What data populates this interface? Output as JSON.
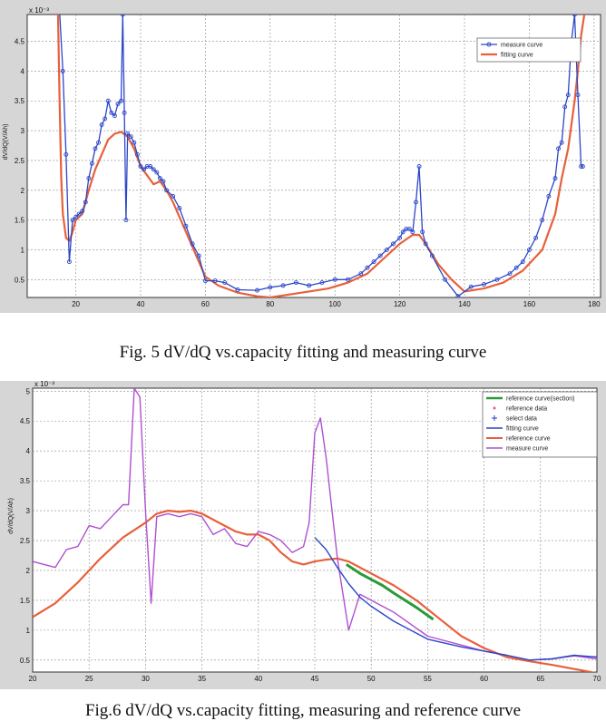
{
  "captions": {
    "fig5": "Fig. 5 dV/dQ vs.capacity fitting and measuring curve",
    "fig6": "Fig.6   dV/dQ vs.capacity fitting, measuring and reference curve"
  },
  "chart_data": [
    {
      "type": "line",
      "title": "",
      "xlabel": "",
      "ylabel": "dV/dQ(V/Ah)",
      "exponent_label": "x 10⁻³",
      "xlim": [
        5,
        182
      ],
      "ylim": [
        0.2,
        4.95
      ],
      "xticks": [
        20,
        40,
        60,
        80,
        100,
        120,
        140,
        160,
        180
      ],
      "yticks": [
        0.5,
        1,
        1.5,
        2,
        2.5,
        3,
        3.5,
        4,
        4.5
      ],
      "grid": true,
      "legend_position": "top-right",
      "colors": {
        "measure": "#2b46c8",
        "fitting": "#e8603a",
        "grid": "#8a8a8a"
      },
      "series": [
        {
          "name": "measure curve",
          "marker": "circle",
          "x": [
            15,
            16,
            17,
            18,
            19,
            20,
            21,
            22,
            23,
            24,
            25,
            26,
            27,
            28,
            29,
            30,
            31,
            32,
            33,
            34,
            34.5,
            35,
            35.5,
            36,
            37,
            38,
            39,
            40,
            41,
            42,
            43,
            44,
            45,
            46,
            47,
            48,
            50,
            52,
            54,
            56,
            58,
            60,
            63,
            66,
            70,
            76,
            80,
            84,
            88,
            92,
            96,
            100,
            104,
            108,
            110,
            112,
            114,
            116,
            118,
            120,
            121,
            122,
            123,
            124,
            125,
            126,
            127,
            128,
            130,
            134,
            138,
            142,
            146,
            150,
            154,
            156,
            158,
            160,
            162,
            164,
            166,
            168,
            169,
            170,
            171,
            172,
            173,
            174,
            175,
            176,
            176.5
          ],
          "y": [
            5.0,
            4.0,
            2.6,
            0.8,
            1.5,
            1.55,
            1.6,
            1.65,
            1.8,
            2.2,
            2.45,
            2.7,
            2.8,
            3.1,
            3.2,
            3.5,
            3.3,
            3.25,
            3.45,
            3.5,
            4.95,
            3.3,
            1.5,
            2.95,
            2.9,
            2.8,
            2.6,
            2.4,
            2.35,
            2.4,
            2.4,
            2.35,
            2.3,
            2.2,
            2.15,
            2.0,
            1.9,
            1.7,
            1.4,
            1.1,
            0.9,
            0.48,
            0.48,
            0.45,
            0.33,
            0.32,
            0.37,
            0.4,
            0.45,
            0.4,
            0.45,
            0.5,
            0.5,
            0.6,
            0.7,
            0.8,
            0.9,
            1.0,
            1.1,
            1.2,
            1.3,
            1.35,
            1.35,
            1.3,
            1.8,
            2.4,
            1.3,
            1.1,
            0.9,
            0.5,
            0.22,
            0.38,
            0.42,
            0.5,
            0.6,
            0.7,
            0.8,
            1.0,
            1.2,
            1.5,
            1.9,
            2.2,
            2.7,
            2.8,
            3.4,
            3.6,
            4.5,
            4.95,
            3.6,
            2.4,
            2.4
          ]
        },
        {
          "name": "fitting curve",
          "x": [
            14.5,
            15,
            15.5,
            16,
            17,
            18,
            19,
            20,
            22,
            24,
            26,
            28,
            30,
            32,
            34,
            36,
            38,
            40,
            42,
            44,
            46,
            48,
            50,
            54,
            58,
            60,
            64,
            70,
            76,
            80,
            86,
            92,
            98,
            104,
            110,
            116,
            120,
            124,
            126,
            128,
            132,
            136,
            140,
            146,
            152,
            158,
            164,
            168,
            170,
            172,
            174,
            175,
            176,
            177
          ],
          "y": [
            5.0,
            3.5,
            2.2,
            1.6,
            1.2,
            1.15,
            1.3,
            1.5,
            1.6,
            2.0,
            2.35,
            2.6,
            2.85,
            2.95,
            2.98,
            2.9,
            2.7,
            2.4,
            2.25,
            2.1,
            2.15,
            2.0,
            1.8,
            1.3,
            0.8,
            0.55,
            0.4,
            0.28,
            0.22,
            0.2,
            0.25,
            0.3,
            0.35,
            0.45,
            0.6,
            0.9,
            1.1,
            1.25,
            1.25,
            1.1,
            0.75,
            0.5,
            0.3,
            0.35,
            0.45,
            0.65,
            1.0,
            1.6,
            2.2,
            2.7,
            3.5,
            4.0,
            4.6,
            4.95
          ]
        }
      ]
    },
    {
      "type": "line",
      "title": "",
      "xlabel": "",
      "ylabel": "dV/dQ(V/Ah)",
      "exponent_label": "x 10⁻³",
      "xlim": [
        20,
        70
      ],
      "ylim": [
        0.3,
        5.05
      ],
      "xticks": [
        20,
        25,
        30,
        35,
        40,
        45,
        50,
        55,
        60,
        65,
        70
      ],
      "yticks": [
        0.5,
        1,
        1.5,
        2,
        2.5,
        3,
        3.5,
        4,
        4.5,
        5
      ],
      "grid": true,
      "legend_position": "top-right",
      "colors": {
        "reference_section": "#2a9a3a",
        "reference_data": "#e06080",
        "select_data": "#2040c0",
        "fitting": "#2b46c8",
        "reference": "#e8603a",
        "measure": "#b050d0",
        "grid": "#8a8a8a"
      },
      "legend": [
        "reference curve(section)",
        "reference data",
        "select data",
        "fitting curve",
        "reference curve",
        "measure curve"
      ],
      "series": [
        {
          "name": "reference curve(section)",
          "x": [
            47.8,
            49,
            50,
            51,
            52,
            53,
            54,
            55.5
          ],
          "y": [
            2.1,
            1.95,
            1.85,
            1.75,
            1.62,
            1.5,
            1.38,
            1.18
          ]
        },
        {
          "name": "fitting curve",
          "x": [
            45,
            46,
            47,
            48,
            49,
            50,
            52,
            55,
            58,
            60,
            62,
            64,
            66,
            68,
            70
          ],
          "y": [
            2.55,
            2.35,
            2.05,
            1.78,
            1.55,
            1.4,
            1.15,
            0.85,
            0.72,
            0.65,
            0.58,
            0.5,
            0.52,
            0.58,
            0.55
          ]
        },
        {
          "name": "reference curve",
          "x": [
            20,
            22,
            24,
            26,
            28,
            30,
            31,
            32,
            33,
            34,
            35,
            36,
            37,
            38,
            39,
            40,
            41,
            42,
            43,
            44,
            45,
            46,
            47,
            48,
            50,
            52,
            54,
            56,
            58,
            60,
            62,
            64,
            66,
            68,
            70
          ],
          "y": [
            1.22,
            1.45,
            1.8,
            2.2,
            2.55,
            2.8,
            2.95,
            3.0,
            2.98,
            3.0,
            2.95,
            2.85,
            2.75,
            2.65,
            2.6,
            2.6,
            2.5,
            2.3,
            2.15,
            2.1,
            2.15,
            2.18,
            2.2,
            2.15,
            1.95,
            1.75,
            1.5,
            1.2,
            0.9,
            0.7,
            0.55,
            0.48,
            0.42,
            0.35,
            0.28
          ]
        },
        {
          "name": "measure curve",
          "x": [
            20,
            22,
            23,
            24,
            25,
            26,
            27,
            28,
            28.5,
            29,
            29.5,
            30,
            30.5,
            31,
            32,
            33,
            34,
            35,
            36,
            37,
            38,
            39,
            40,
            41,
            42,
            43,
            44,
            44.5,
            45,
            45.5,
            46,
            47,
            48,
            49,
            50,
            52,
            55,
            58,
            60,
            62,
            64,
            66,
            68,
            70
          ],
          "y": [
            2.15,
            2.05,
            2.35,
            2.4,
            2.75,
            2.7,
            2.9,
            3.1,
            3.1,
            5.05,
            4.9,
            3.0,
            1.45,
            2.9,
            2.95,
            2.9,
            2.95,
            2.9,
            2.6,
            2.7,
            2.45,
            2.4,
            2.65,
            2.6,
            2.5,
            2.3,
            2.4,
            2.8,
            4.3,
            4.55,
            3.9,
            2.2,
            1.0,
            1.6,
            1.5,
            1.3,
            0.9,
            0.75,
            0.65,
            0.58,
            0.5,
            0.52,
            0.57,
            0.52
          ]
        }
      ]
    }
  ]
}
